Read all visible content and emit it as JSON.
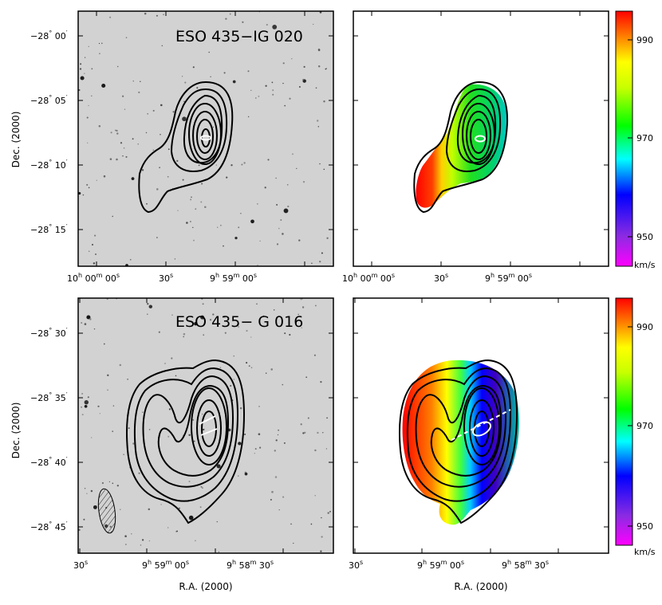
{
  "chart_data": [
    {
      "type": "contour",
      "panel": "top-left",
      "title": "ESO 435−IG 020",
      "background": "optical greyscale image",
      "xlabel": "",
      "ylabel": "Dec. (2000)",
      "xticks": [
        {
          "h": "10",
          "m": "00",
          "s": "00",
          "text_h": "10",
          "text_m": "00",
          "text_s": "00"
        },
        {
          "s": "30",
          "text_s": "30"
        },
        {
          "h": "9",
          "m": "59",
          "s": "00",
          "text_h": "9",
          "text_m": "59",
          "text_s": "00"
        }
      ],
      "yticks": [
        {
          "deg": "−28",
          "min": "00"
        },
        {
          "deg": "−28",
          "min": "05"
        },
        {
          "deg": "−28",
          "min": "10"
        },
        {
          "deg": "−28",
          "min": "15"
        }
      ],
      "contour_levels": 7
    },
    {
      "type": "heatmap",
      "panel": "top-right",
      "description_value": "velocity field with HI contours",
      "xlabel": "",
      "xticks": [
        {
          "h": "10",
          "m": "00",
          "s": "00"
        },
        {
          "s": "30"
        },
        {
          "h": "9",
          "m": "59",
          "s": "00"
        }
      ],
      "colorbar": {
        "ticks": [
          950,
          970,
          990
        ],
        "unit": "km/s",
        "range": [
          943,
          995
        ]
      }
    },
    {
      "type": "contour",
      "panel": "bottom-left",
      "title": "ESO 435− G 016",
      "xlabel": "R.A. (2000)",
      "ylabel": "Dec. (2000)",
      "xticks": [
        {
          "s": "30"
        },
        {
          "h": "9",
          "m": "59",
          "s": "00"
        },
        {
          "h": "9",
          "m": "58",
          "s": "30"
        }
      ],
      "yticks": [
        {
          "deg": "−28",
          "min": "30"
        },
        {
          "deg": "−28",
          "min": "35"
        },
        {
          "deg": "−28",
          "min": "40"
        },
        {
          "deg": "−28",
          "min": "45"
        }
      ],
      "contour_levels": 7,
      "beam": "hatched ellipse"
    },
    {
      "type": "heatmap",
      "panel": "bottom-right",
      "xlabel": "R.A. (2000)",
      "xticks": [
        {
          "s": "30"
        },
        {
          "h": "9",
          "m": "59",
          "s": "00"
        },
        {
          "h": "9",
          "m": "58",
          "s": "30"
        }
      ],
      "colorbar": {
        "ticks": [
          950,
          970,
          990
        ],
        "unit": "km/s",
        "range": [
          943,
          995
        ]
      }
    }
  ],
  "labels": {
    "dec": "Dec. (2000)",
    "ra": "R.A. (2000)",
    "unit": "km/s",
    "title_top": "ESO 435−IG 020",
    "title_bottom": "ESO 435− G 016",
    "cb_950": "950",
    "cb_970": "970",
    "cb_990": "990",
    "ra_10h": "10",
    "ra_00m": "00",
    "ra_00s": "00",
    "ra_30s": "30",
    "ra_9h": "9",
    "ra_59m": "59",
    "ra_58m": "58",
    "dec_deg": "−28",
    "dec_00": "00",
    "dec_05": "05",
    "dec_10": "10",
    "dec_15": "15",
    "dec_30": "30",
    "dec_35": "35",
    "dec_40": "40",
    "dec_45": "45"
  }
}
